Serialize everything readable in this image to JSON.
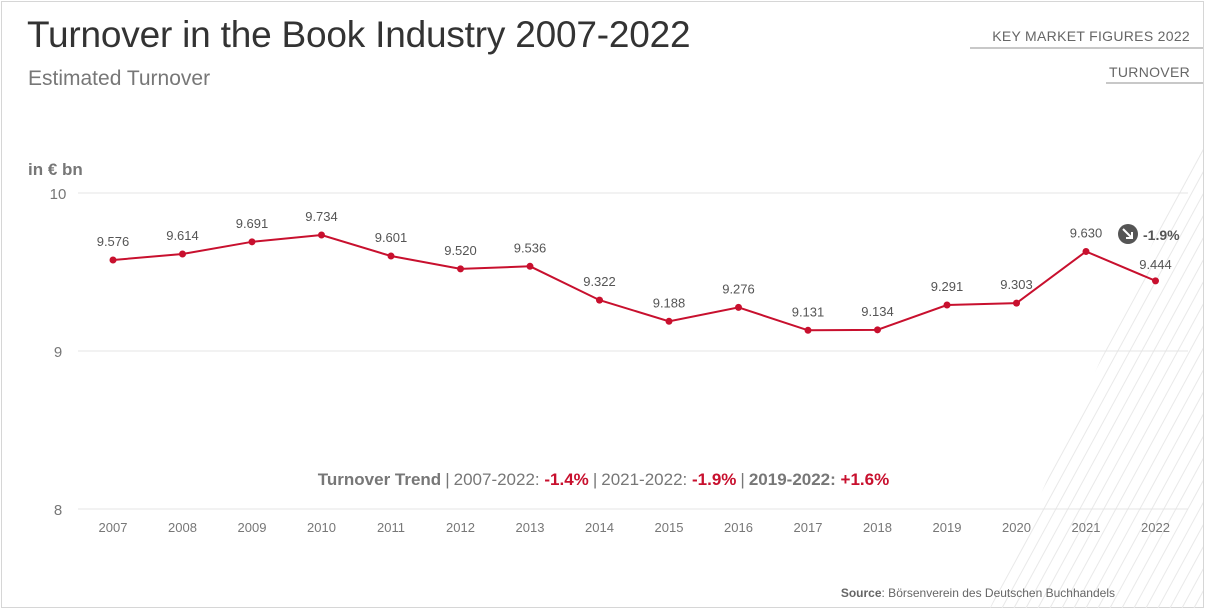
{
  "header": {
    "title": "Turnover in the Book Industry 2007-2022",
    "subtitle": "Estimated Turnover"
  },
  "nav": {
    "primary": "KEY MARKET FIGURES 2022",
    "secondary": "TURNOVER"
  },
  "chart_data": {
    "type": "line",
    "title": "Turnover in the Book Industry 2007-2022",
    "subtitle": "Estimated Turnover",
    "ylabel": "in € bn",
    "ylim": [
      8,
      10
    ],
    "yticks": [
      "10",
      "9",
      "8"
    ],
    "grid": true,
    "color": "#c8102e",
    "categories": [
      "2007",
      "2008",
      "2009",
      "2010",
      "2011",
      "2012",
      "2013",
      "2014",
      "2015",
      "2016",
      "2017",
      "2018",
      "2019",
      "2020",
      "2021",
      "2022"
    ],
    "values": [
      9.576,
      9.614,
      9.691,
      9.734,
      9.601,
      9.52,
      9.536,
      9.322,
      9.188,
      9.276,
      9.131,
      9.134,
      9.291,
      9.303,
      9.63,
      9.444
    ],
    "value_labels": [
      "9.576",
      "9.614",
      "9.691",
      "9.734",
      "9.601",
      "9.520",
      "9.536",
      "9.322",
      "9.188",
      "9.276",
      "9.131",
      "9.134",
      "9.291",
      "9.303",
      "9.630",
      "9.444"
    ],
    "change_badge": {
      "icon": "arrow-down-right-icon",
      "text": "-1.9%"
    }
  },
  "trend": {
    "label": "Turnover Trend",
    "p1_label": "2007-2022:",
    "p1_value": "-1.4%",
    "p2_label": "2021-2022:",
    "p2_value": "-1.9%",
    "p3_label": "2019-2022:",
    "p3_value": "+1.6%"
  },
  "source": {
    "label": "Source",
    "text": ": Börsenverein des Deutschen Buchhandels"
  }
}
